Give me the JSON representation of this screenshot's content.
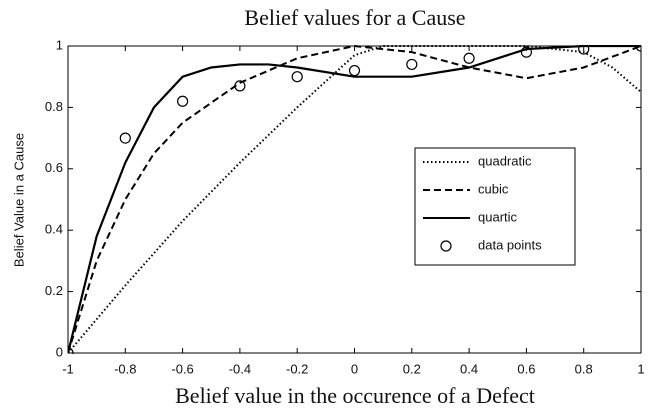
{
  "chart_data": {
    "type": "line",
    "title": "Belief values for a Cause",
    "xlabel": "Belief value in the occurence of a Defect",
    "ylabel": "Belief Value in   a Cause",
    "xlim": [
      -1,
      1
    ],
    "xticks": [
      -1,
      -0.8,
      -0.6,
      -0.4,
      -0.2,
      0,
      0.2,
      0.4,
      0.6,
      0.8,
      1
    ],
    "ylim": [
      0,
      1
    ],
    "yticks": [
      0,
      0.2,
      0.4,
      0.6,
      0.8,
      1
    ],
    "legend": "center right",
    "series": [
      {
        "name": "quadratic",
        "color": "#000000",
        "linestyle": "dotted",
        "x": [
          -1,
          -0.8,
          -0.6,
          -0.4,
          -0.2,
          0,
          0.1,
          0.2,
          0.4,
          0.6,
          0.8,
          0.9,
          1
        ],
        "values": [
          0,
          0.22,
          0.43,
          0.62,
          0.8,
          0.97,
          1,
          1,
          1,
          1,
          0.98,
          0.93,
          0.85
        ]
      },
      {
        "name": "cubic",
        "color": "#000000",
        "linestyle": "dashed",
        "x": [
          -1,
          -0.9,
          -0.8,
          -0.7,
          -0.6,
          -0.4,
          -0.2,
          0,
          0.2,
          0.4,
          0.6,
          0.8,
          1
        ],
        "values": [
          0,
          0.3,
          0.5,
          0.65,
          0.75,
          0.88,
          0.96,
          1,
          0.98,
          0.93,
          0.895,
          0.93,
          1
        ]
      },
      {
        "name": "quartic",
        "color": "#000000",
        "linestyle": "solid",
        "x": [
          -1,
          -0.9,
          -0.8,
          -0.7,
          -0.6,
          -0.5,
          -0.4,
          -0.3,
          -0.2,
          0,
          0.2,
          0.4,
          0.6,
          0.8,
          1
        ],
        "values": [
          0,
          0.38,
          0.62,
          0.8,
          0.9,
          0.93,
          0.94,
          0.94,
          0.93,
          0.9,
          0.9,
          0.93,
          0.99,
          1,
          1
        ]
      },
      {
        "name": "data points",
        "color": "#000000",
        "linestyle": "none",
        "marker": "o",
        "x": [
          -1,
          -0.8,
          -0.6,
          -0.4,
          -0.2,
          0,
          0.2,
          0.4,
          0.6,
          0.8,
          1
        ],
        "values": [
          0,
          0.7,
          0.82,
          0.87,
          0.9,
          0.92,
          0.94,
          0.96,
          0.98,
          0.99,
          1
        ]
      }
    ]
  }
}
